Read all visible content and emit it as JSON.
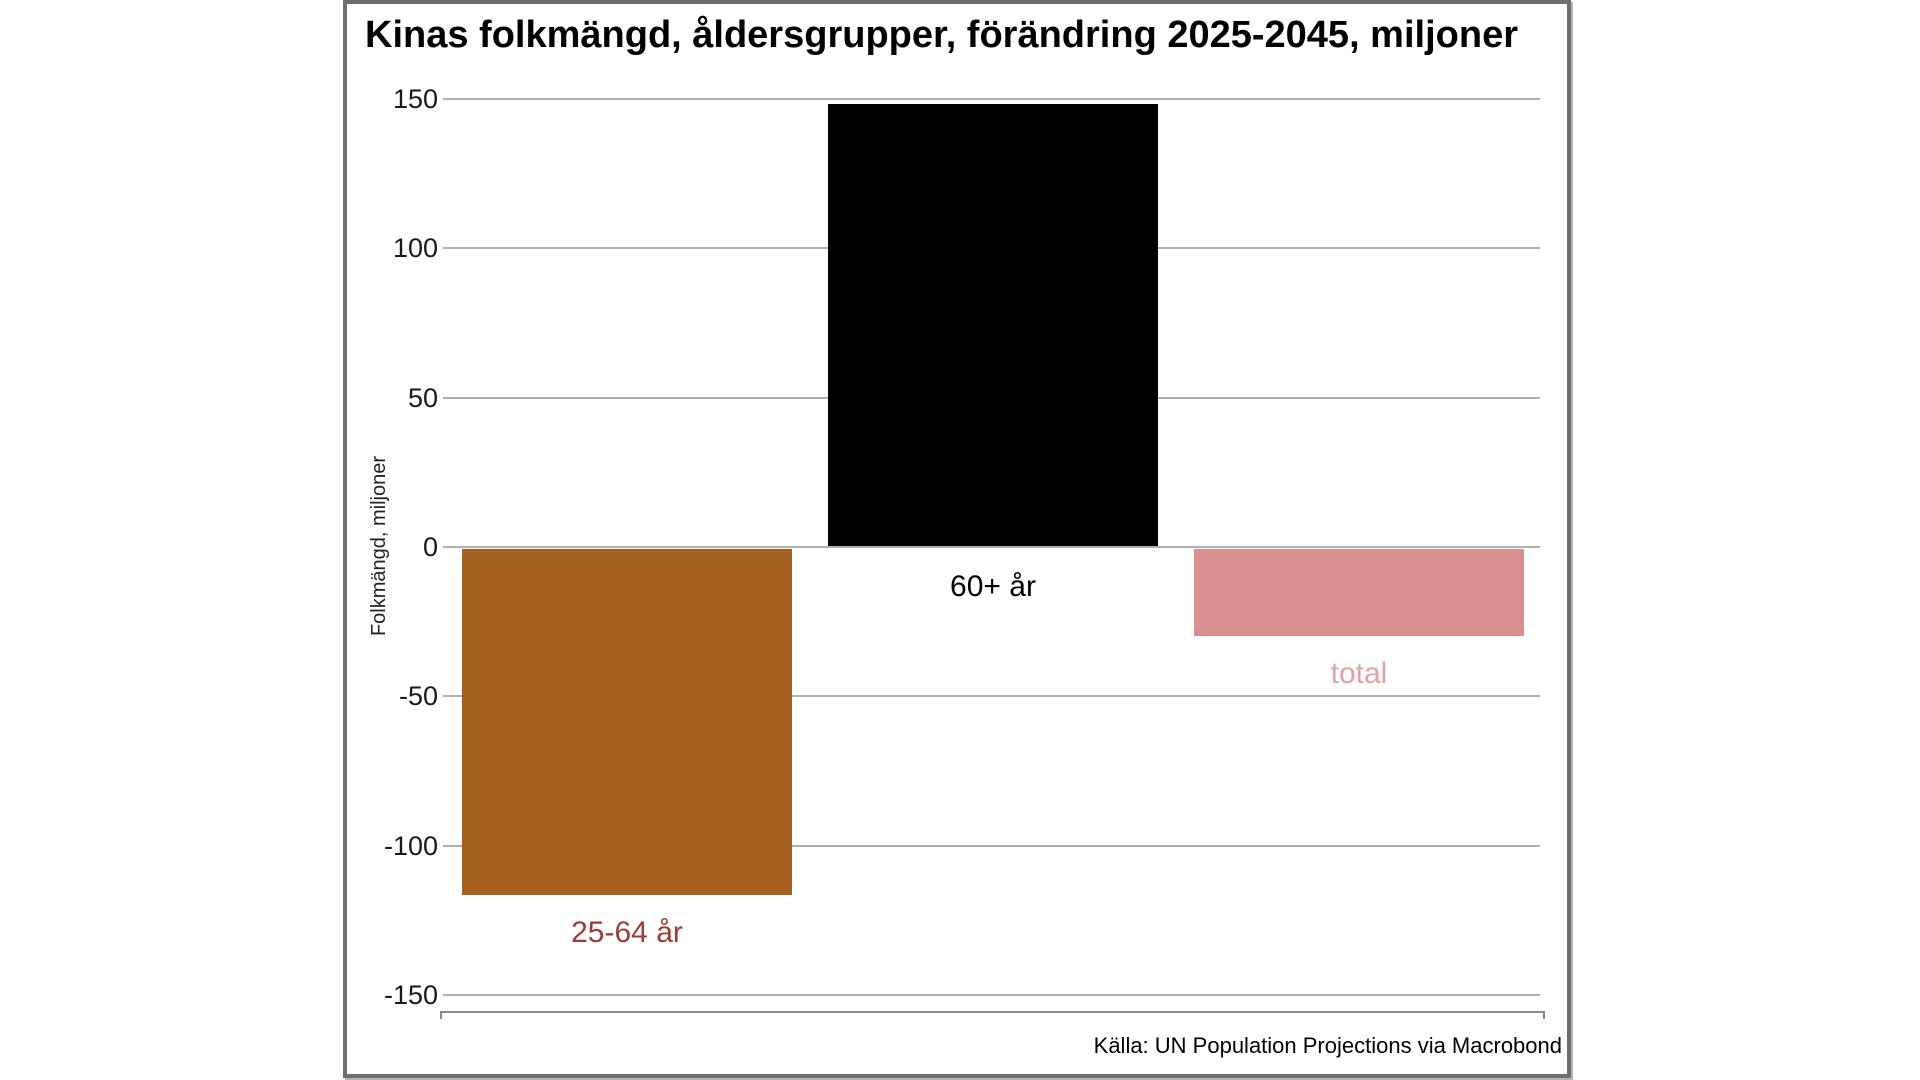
{
  "page": {
    "background": "#ffffff",
    "frame_border_color": "#6e6e6e"
  },
  "chart_data": {
    "type": "bar",
    "title": "Kinas folkmängd, åldersgrupper, förändring 2025-2045, miljoner",
    "ylabel": "Folkmängd, miljoner",
    "source": "Källa: UN Population Projections via Macrobond",
    "categories": [
      "25-64 år",
      "60+ år",
      "total"
    ],
    "values": [
      -116,
      148,
      -29
    ],
    "bar_colors": [
      "#a7601f",
      "#000000",
      "#d98f8f"
    ],
    "label_colors": [
      "#9d3a33",
      "#000000",
      "#e2a2a2"
    ],
    "yticks": [
      150,
      100,
      50,
      0,
      -50,
      -100,
      -150
    ],
    "ylim": [
      -150,
      150
    ],
    "grid": true,
    "gridline_color": "#b0b0b0",
    "legend": "none",
    "bar_label_position": "below-bar-or-below-baseline"
  }
}
